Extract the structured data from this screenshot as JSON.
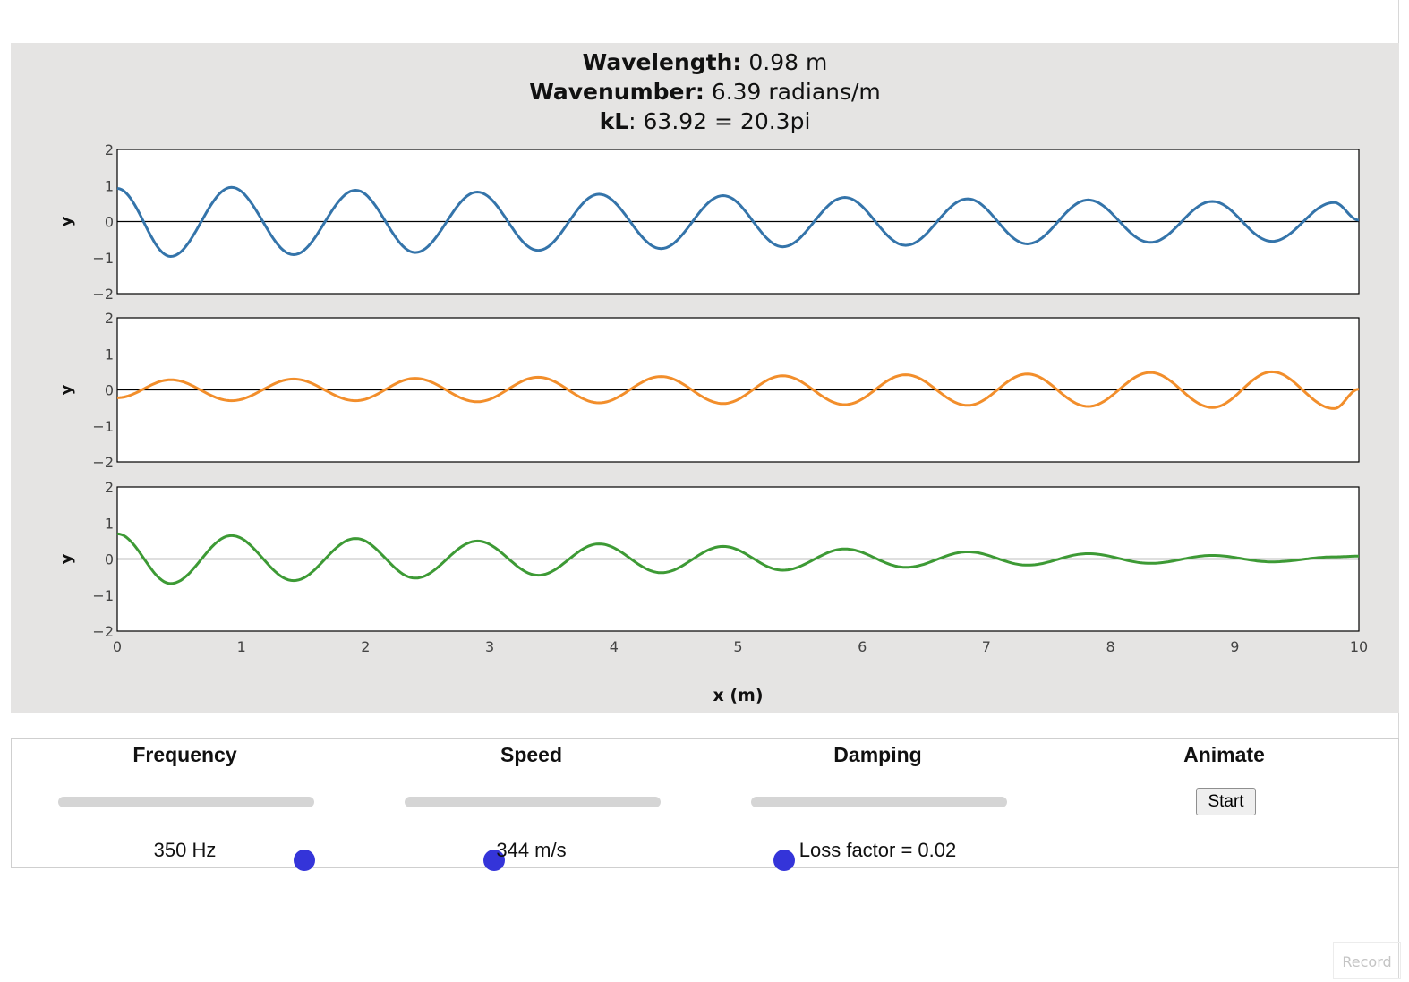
{
  "info": {
    "wavelength_label": "Wavelength:",
    "wavelength_value": " 0.98 m",
    "wavenumber_label": "Wavenumber:",
    "wavenumber_value": " 6.39 radians/m",
    "kl_label": "kL",
    "kl_value": ": 63.92 = 20.3pi"
  },
  "chart_data": {
    "type": "line",
    "xlabel": "x (m)",
    "ylabel": "y",
    "xlim": [
      0,
      10
    ],
    "ylim": [
      -2,
      2
    ],
    "x_ticks": [
      "0",
      "1",
      "2",
      "3",
      "4",
      "5",
      "6",
      "7",
      "8",
      "9",
      "10"
    ],
    "y_ticks": [
      "2",
      "1",
      "0",
      "−1",
      "−2"
    ],
    "panels": [
      {
        "color": "#3474aa",
        "description_values": "incident wave",
        "amp0": 0.95,
        "ampL": 0.56,
        "growth": false,
        "points": [
          [
            0,
            0.92
          ],
          [
            0.43,
            -0.97
          ],
          [
            0.92,
            0.95
          ],
          [
            1.42,
            -0.92
          ],
          [
            1.92,
            0.87
          ],
          [
            2.4,
            -0.86
          ],
          [
            2.9,
            0.82
          ],
          [
            3.39,
            -0.8
          ],
          [
            3.88,
            0.76
          ],
          [
            4.38,
            -0.75
          ],
          [
            4.88,
            0.72
          ],
          [
            5.36,
            -0.7
          ],
          [
            5.86,
            0.67
          ],
          [
            6.35,
            -0.66
          ],
          [
            6.85,
            0.63
          ],
          [
            7.33,
            -0.62
          ],
          [
            7.82,
            0.6
          ],
          [
            8.32,
            -0.58
          ],
          [
            8.82,
            0.56
          ],
          [
            9.3,
            -0.55
          ],
          [
            9.8,
            0.53
          ],
          [
            10,
            0.04
          ]
        ]
      },
      {
        "color": "#f28e2b",
        "description_values": "reflected wave",
        "points": [
          [
            0,
            -0.22
          ],
          [
            0.43,
            0.28
          ],
          [
            0.92,
            -0.3
          ],
          [
            1.42,
            0.3
          ],
          [
            1.92,
            -0.3
          ],
          [
            2.4,
            0.32
          ],
          [
            2.9,
            -0.33
          ],
          [
            3.39,
            0.35
          ],
          [
            3.88,
            -0.36
          ],
          [
            4.38,
            0.37
          ],
          [
            4.88,
            -0.38
          ],
          [
            5.36,
            0.39
          ],
          [
            5.86,
            -0.41
          ],
          [
            6.35,
            0.42
          ],
          [
            6.85,
            -0.43
          ],
          [
            7.33,
            0.44
          ],
          [
            7.82,
            -0.46
          ],
          [
            8.32,
            0.48
          ],
          [
            8.82,
            -0.49
          ],
          [
            9.3,
            0.5
          ],
          [
            9.8,
            -0.52
          ],
          [
            10,
            0.02
          ]
        ]
      },
      {
        "color": "#3d9a35",
        "description_values": "sum",
        "points": [
          [
            0,
            0.7
          ],
          [
            0.43,
            -0.68
          ],
          [
            0.92,
            0.65
          ],
          [
            1.42,
            -0.6
          ],
          [
            1.92,
            0.57
          ],
          [
            2.4,
            -0.53
          ],
          [
            2.9,
            0.5
          ],
          [
            3.39,
            -0.45
          ],
          [
            3.88,
            0.42
          ],
          [
            4.38,
            -0.38
          ],
          [
            4.88,
            0.35
          ],
          [
            5.36,
            -0.31
          ],
          [
            5.86,
            0.28
          ],
          [
            6.35,
            -0.23
          ],
          [
            6.85,
            0.2
          ],
          [
            7.33,
            -0.17
          ],
          [
            7.82,
            0.15
          ],
          [
            8.32,
            -0.12
          ],
          [
            8.82,
            0.1
          ],
          [
            9.3,
            -0.08
          ],
          [
            9.8,
            0.06
          ],
          [
            10,
            0.08
          ]
        ]
      }
    ]
  },
  "controls": {
    "frequency": {
      "title": "Frequency",
      "value": "350 Hz",
      "position": 0.96
    },
    "speed": {
      "title": "Speed",
      "value": "344 m/s",
      "position": 0.35
    },
    "damping": {
      "title": "Damping",
      "value": "Loss factor = 0.02",
      "position": 0.13
    },
    "animate": {
      "title": "Animate",
      "button_label": "Start"
    }
  },
  "record_label": "Record"
}
